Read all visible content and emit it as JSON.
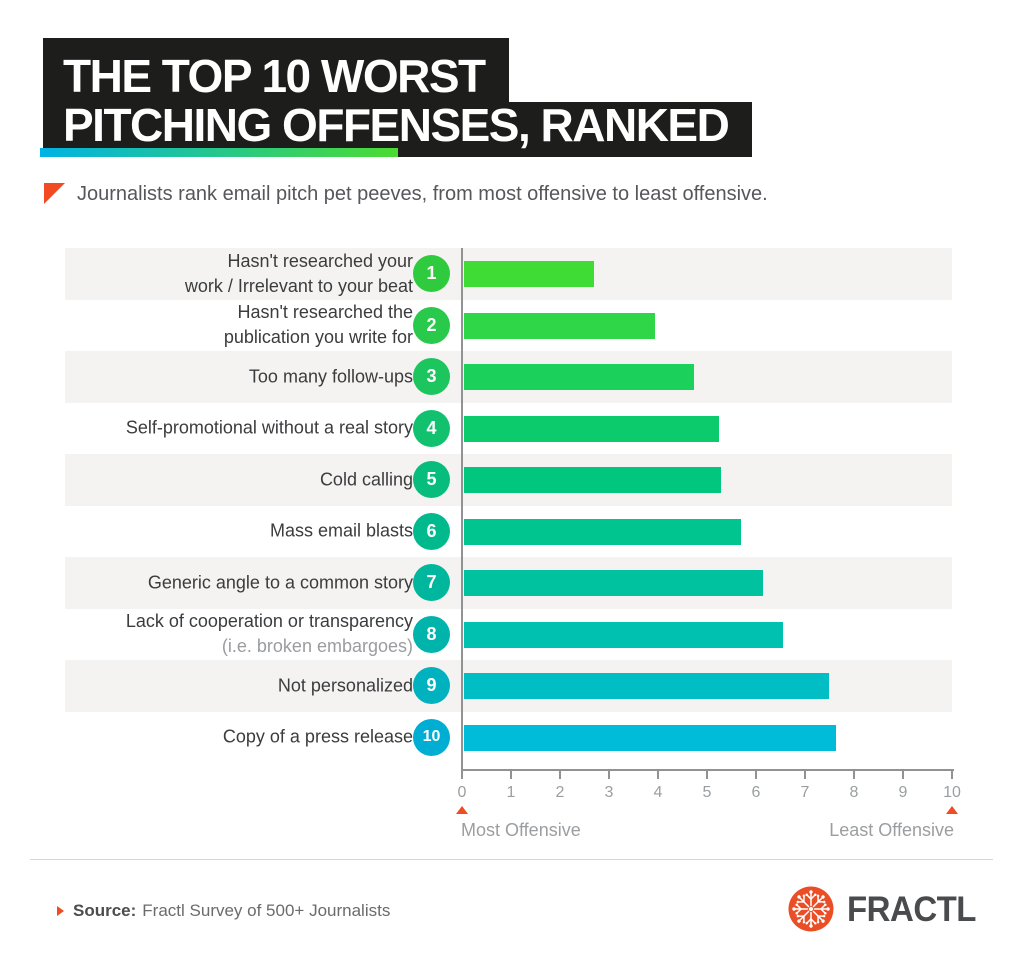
{
  "header": {
    "title_line1": "THE TOP 10 WORST",
    "title_line2": "PITCHING OFFENSES, RANKED",
    "subtitle": "Journalists rank email pitch pet peeves, from most offensive to least offensive."
  },
  "chart_data": {
    "type": "bar",
    "orientation": "horizontal",
    "title": "The Top 10 Worst Pitching Offenses, Ranked",
    "xlim": [
      0,
      10
    ],
    "x_ticks": [
      "0",
      "1",
      "2",
      "3",
      "4",
      "5",
      "6",
      "7",
      "8",
      "9",
      "10"
    ],
    "xlabel_left": "Most Offensive",
    "xlabel_right": "Least Offensive",
    "grid": false,
    "items": [
      {
        "rank": "1",
        "label_lines": [
          "Hasn't researched your",
          "work / Irrelevant to your beat"
        ],
        "value": 2.65,
        "bar_color": "#3fdc35",
        "badge_color": "#2fca3e"
      },
      {
        "rank": "2",
        "label_lines": [
          "Hasn't researched the",
          "publication you write for"
        ],
        "value": 3.9,
        "bar_color": "#2ed648",
        "badge_color": "#29c94c"
      },
      {
        "rank": "3",
        "label_lines": [
          "Too many follow-ups"
        ],
        "value": 4.7,
        "bar_color": "#1bd05b",
        "badge_color": "#1dc55e"
      },
      {
        "rank": "4",
        "label_lines": [
          "Self-promotional without a real story"
        ],
        "value": 5.2,
        "bar_color": "#0bcb6d",
        "badge_color": "#12c16e"
      },
      {
        "rank": "5",
        "label_lines": [
          "Cold calling"
        ],
        "value": 5.25,
        "bar_color": "#00c67e",
        "badge_color": "#07bd7e"
      },
      {
        "rank": "6",
        "label_lines": [
          "Mass email blasts"
        ],
        "value": 5.65,
        "bar_color": "#00c58e",
        "badge_color": "#00ba8e"
      },
      {
        "rank": "7",
        "label_lines": [
          "Generic angle to a common story"
        ],
        "value": 6.1,
        "bar_color": "#00c29e",
        "badge_color": "#00b79d"
      },
      {
        "rank": "8",
        "label_lines": [
          "Lack of cooperation or transparency"
        ],
        "note": "(i.e. broken embargoes)",
        "value": 6.5,
        "bar_color": "#00c0af",
        "badge_color": "#00b4ac"
      },
      {
        "rank": "9",
        "label_lines": [
          "Not personalized"
        ],
        "value": 7.45,
        "bar_color": "#00bec4",
        "badge_color": "#00b2c0"
      },
      {
        "rank": "10",
        "label_lines": [
          "Copy of a press release"
        ],
        "value": 7.6,
        "bar_color": "#00bcd9",
        "badge_color": "#00aed3"
      }
    ]
  },
  "footer": {
    "source_label": "Source:",
    "source_text": "Fractl Survey of 500+ Journalists",
    "brand": "FRACTL"
  },
  "theme": {
    "block_bg": "#1d1d1b",
    "accent": "#f04b22",
    "gradient_start": "#00b3e3",
    "gradient_end": "#4cdb33",
    "band_bg": "#f4f3f1",
    "axis_color": "#909294",
    "tick_text": "#9b9ea0",
    "label_text": "#3b3c3e",
    "muted_text": "#9b9c9f",
    "logo_color": "#ea4e26",
    "wordmark_color": "#4a4b4d"
  }
}
